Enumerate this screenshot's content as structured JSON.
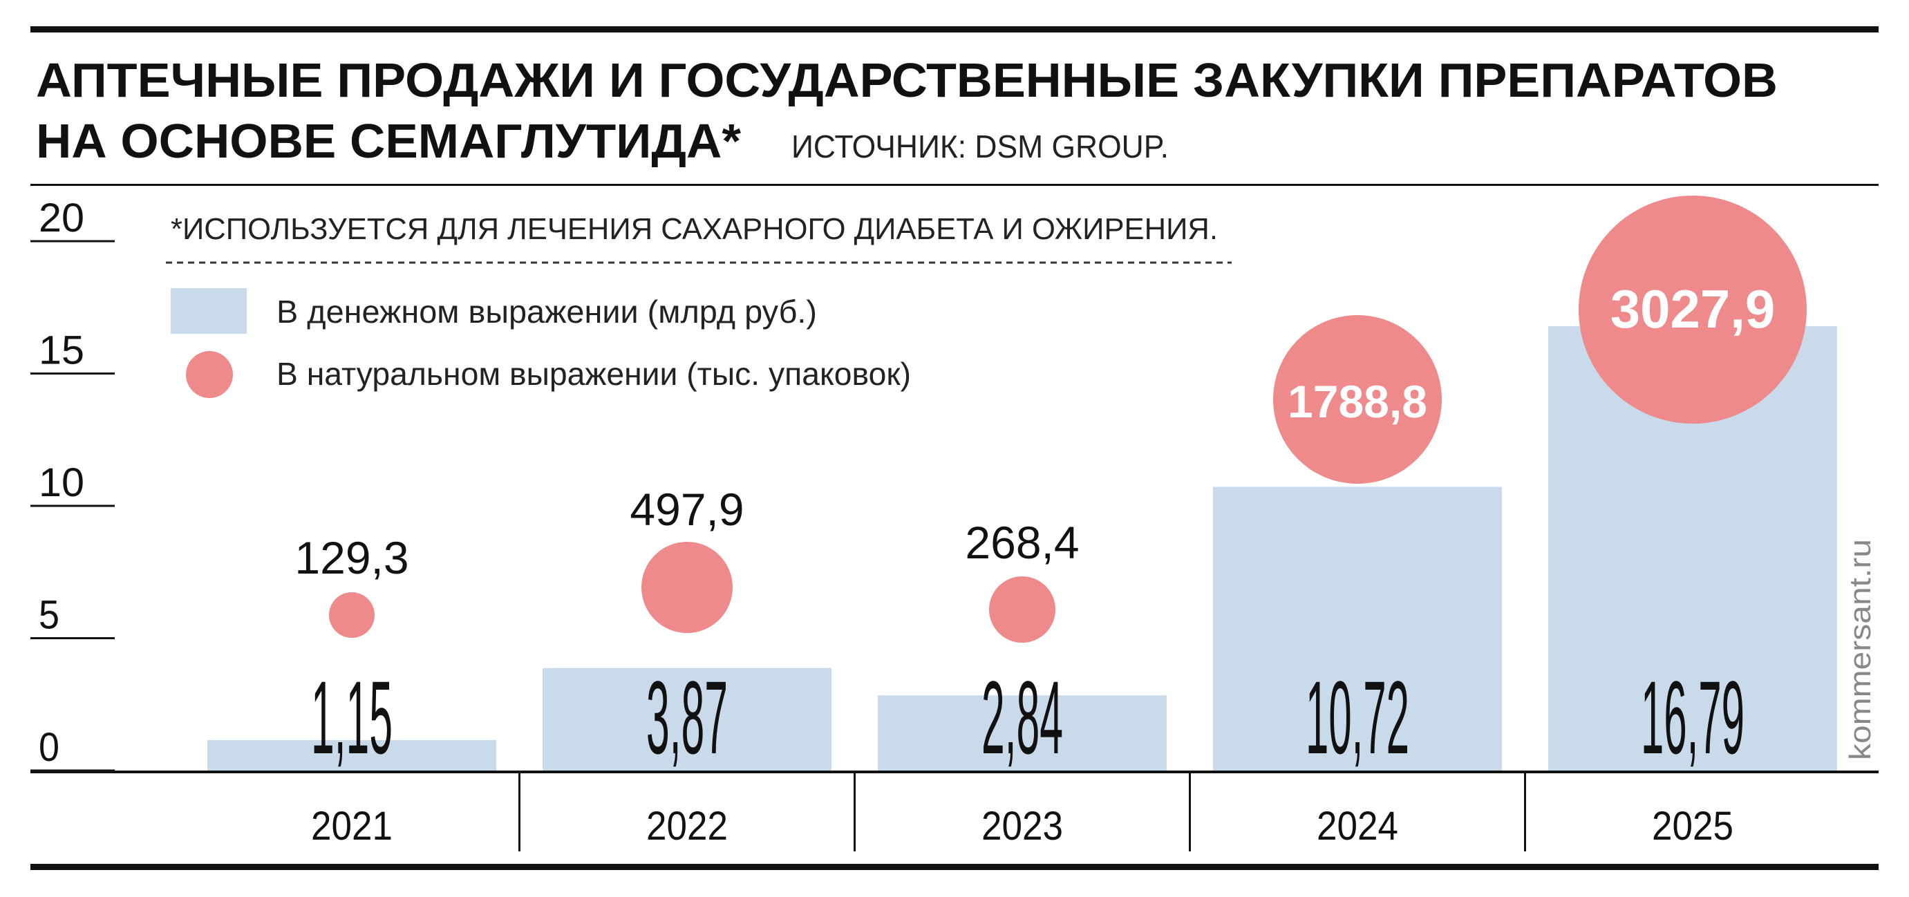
{
  "chart_data": {
    "type": "bar",
    "title": "АПТЕЧНЫЕ ПРОДАЖИ И ГОСУДАРСТВЕННЫЕ ЗАКУПКИ ПРЕПАРАТОВ НА ОСНОВЕ СЕМАГЛУТИДА*",
    "title_line1": "АПТЕЧНЫЕ ПРОДАЖИ И ГОСУДАРСТВЕННЫЕ ЗАКУПКИ ПРЕПАРАТОВ",
    "title_line2": "НА ОСНОВЕ СЕМАГЛУТИДА*",
    "source": "ИСТОЧНИК: DSM GROUP.",
    "footnote": "*ИСПОЛЬЗУЕТСЯ ДЛЯ ЛЕЧЕНИЯ САХАРНОГО ДИАБЕТА И ОЖИРЕНИЯ.",
    "watermark": "kommersant.ru",
    "categories": [
      "2021",
      "2022",
      "2023",
      "2024",
      "2025"
    ],
    "series": [
      {
        "name": "В денежном выражении (млрд руб.)",
        "type": "bar",
        "values": [
          1.15,
          3.87,
          2.84,
          10.72,
          16.79
        ],
        "labels": [
          "1,15",
          "3,87",
          "2,84",
          "10,72",
          "16,79"
        ],
        "color": "#c9dbeb"
      },
      {
        "name": "В натуральном выражении (тыс. упаковок)",
        "type": "bubble",
        "values": [
          129.3,
          497.9,
          268.4,
          1788.8,
          3027.9
        ],
        "labels": [
          "129,3",
          "497,9",
          "268,4",
          "1788,8",
          "3027,9"
        ],
        "color": "#ee8a8b"
      }
    ],
    "yticks": [
      "0",
      "5",
      "10",
      "15",
      "20"
    ],
    "ylim": [
      0,
      20
    ],
    "grid": false,
    "legend_position": "top-left"
  }
}
